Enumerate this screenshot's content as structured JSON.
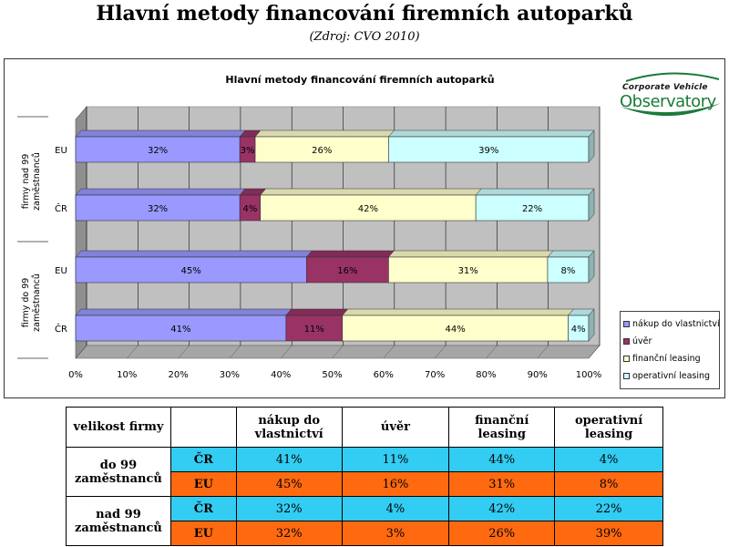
{
  "page": {
    "title": "Hlavní metody financování firemních autoparků",
    "subtitle": "(Zdroj: CVO 2010)"
  },
  "logo": {
    "line1": "Corporate Vehicle",
    "line2": "Observatory"
  },
  "colors": {
    "purchase": "#9999ff",
    "loan": "#993366",
    "finance_leasing": "#ffffcc",
    "operating_leasing": "#ccffff",
    "table_cz": "#33ccf2",
    "table_eu": "#ff6a10"
  },
  "chart_data": {
    "type": "bar",
    "orientation": "horizontal-stacked-100",
    "title": "Hlavní metody financování firemních autoparků",
    "group_labels": [
      "firmy nad 99 zaměstnanců",
      "firmy do 99 zaměstnanců"
    ],
    "categories": [
      "EU",
      "ČR",
      "EU",
      "ČR"
    ],
    "category_groups": [
      0,
      0,
      1,
      1
    ],
    "series": [
      {
        "name": "nákup do vlastnictví",
        "values": [
          32,
          32,
          45,
          41
        ],
        "labels": [
          "32%",
          "32%",
          "45%",
          "41%"
        ]
      },
      {
        "name": "úvěr",
        "values": [
          3,
          4,
          16,
          11
        ],
        "labels": [
          "3%",
          "4%",
          "16%",
          "11%"
        ]
      },
      {
        "name": "finanční leasing",
        "values": [
          26,
          42,
          31,
          44
        ],
        "labels": [
          "26%",
          "42%",
          "31%",
          "44%"
        ]
      },
      {
        "name": "operativní leasing",
        "values": [
          39,
          22,
          8,
          4
        ],
        "labels": [
          "39%",
          "22%",
          "8%",
          "4%"
        ]
      }
    ],
    "xticks": [
      "0%",
      "10%",
      "20%",
      "30%",
      "40%",
      "50%",
      "60%",
      "70%",
      "80%",
      "90%",
      "100%"
    ],
    "xlim": [
      0,
      100
    ],
    "grid": true,
    "legend_position": "right"
  },
  "table": {
    "headers": {
      "size": "velikost firmy",
      "purchase": "nákup do vlastnictví",
      "loan": "úvěr",
      "finance": "finanční leasing",
      "operating": "operativní leasing"
    },
    "groups": [
      {
        "label": "do 99 zaměstnanců",
        "rows": [
          {
            "country": "ČR",
            "values": [
              "41%",
              "11%",
              "44%",
              "4%"
            ]
          },
          {
            "country": "EU",
            "values": [
              "45%",
              "16%",
              "31%",
              "8%"
            ]
          }
        ]
      },
      {
        "label": "nad 99 zaměstnanců",
        "rows": [
          {
            "country": "ČR",
            "values": [
              "32%",
              "4%",
              "42%",
              "22%"
            ]
          },
          {
            "country": "EU",
            "values": [
              "32%",
              "3%",
              "26%",
              "39%"
            ]
          }
        ]
      }
    ]
  }
}
